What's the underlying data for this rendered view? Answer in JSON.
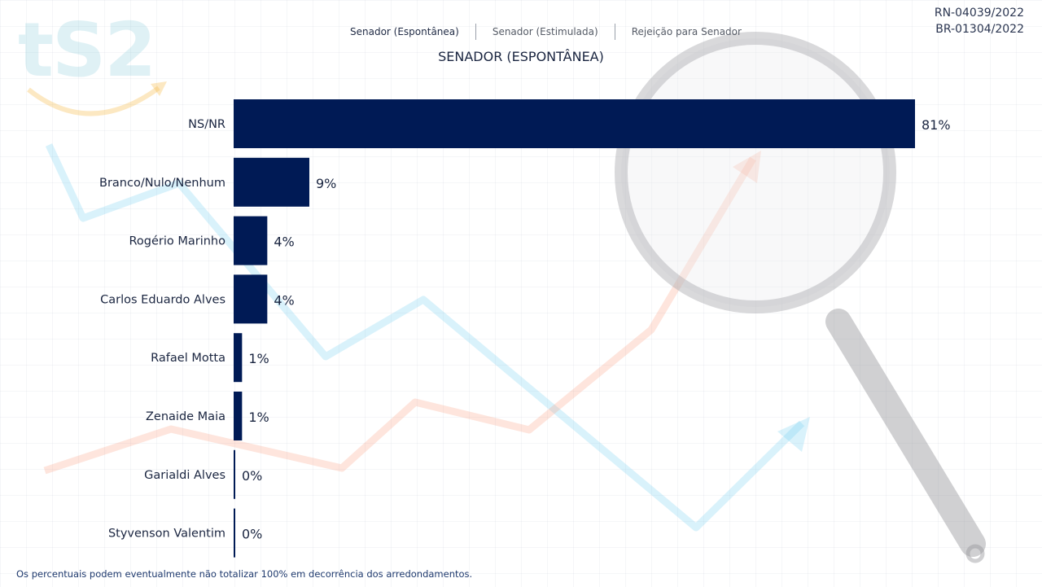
{
  "logo": "tS2",
  "codes": [
    "RN-04039/2022",
    "BR-01304/2022"
  ],
  "tabs": [
    {
      "label": "Senador (Espontânea)",
      "active": true
    },
    {
      "label": "Senador (Estimulada)",
      "active": false
    },
    {
      "label": "Rejeição para Senador",
      "active": false
    }
  ],
  "footnote": "Os percentuais podem eventualmente não totalizar 100% em decorrência dos arredondamentos.",
  "colors": {
    "bar": "#001a55",
    "label": "#1a2540"
  },
  "chart_data": {
    "type": "bar",
    "orientation": "horizontal",
    "title": "SENADOR (ESPONTÂNEA)",
    "categories": [
      "NS/NR",
      "Branco/Nulo/Nenhum",
      "Rogério Marinho",
      "Carlos Eduardo Alves",
      "Rafael Motta",
      "Zenaide Maia",
      "Garialdi Alves",
      "Styvenson Valentim"
    ],
    "values": [
      81,
      9,
      4,
      4,
      1,
      1,
      0,
      0
    ],
    "data_labels": [
      "81%",
      "9%",
      "4%",
      "4%",
      "1%",
      "1%",
      "0%",
      "0%"
    ],
    "unit": "%",
    "xlim": [
      0,
      81
    ],
    "grid": false,
    "legend": "none"
  }
}
